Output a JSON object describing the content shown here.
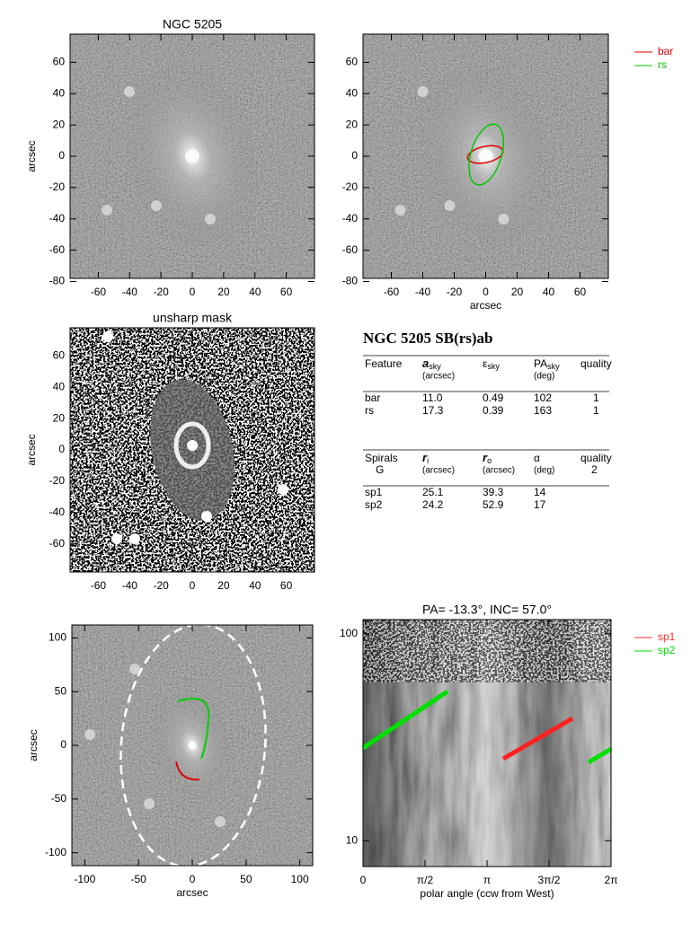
{
  "panels": [
    {
      "title": "NGC 5205",
      "ylabel": "arcsec",
      "xlim": [
        -78,
        78
      ],
      "ylim": [
        -78,
        78
      ],
      "xticks": [
        -60,
        -40,
        -20,
        0,
        20,
        40,
        60
      ],
      "yticks": [
        -80,
        -60,
        -40,
        -20,
        0,
        20,
        40,
        60
      ]
    },
    {
      "xlabel": "arcsec",
      "xlim": [
        -78,
        78
      ],
      "ylim": [
        -78,
        78
      ],
      "xticks": [
        -60,
        -40,
        -20,
        0,
        20,
        40,
        60
      ],
      "yticks": [
        -80,
        -60,
        -40,
        -20,
        0,
        20,
        40,
        60
      ],
      "legend": [
        {
          "name": "bar",
          "color": "#e00000"
        },
        {
          "name": "rs",
          "color": "#00c800"
        }
      ]
    },
    {
      "title": "unsharp mask",
      "ylabel": "arcsec",
      "xlim": [
        -78,
        78
      ],
      "ylim": [
        -78,
        78
      ],
      "xticks": [
        -60,
        -40,
        -20,
        0,
        20,
        40,
        60
      ],
      "yticks": [
        -60,
        -40,
        -20,
        0,
        20,
        40,
        60
      ]
    },
    {
      "xlabel": "arcsec",
      "ylabel": "arcsec",
      "xlim": [
        -112,
        112
      ],
      "ylim": [
        -112,
        112
      ],
      "xticks": [
        -100,
        -50,
        0,
        50,
        100
      ],
      "yticks": [
        -100,
        -50,
        0,
        50,
        100
      ]
    },
    {
      "title": "PA= -13.3°, INC=  57.0°",
      "xlabel": "polar angle (ccw from West)",
      "xlim": [
        0,
        6.2832
      ],
      "ylim": [
        7.5,
        117
      ],
      "ylog": true,
      "xticks": [
        {
          "value": 0,
          "label": "0"
        },
        {
          "value": 1.5708,
          "label": "π/2"
        },
        {
          "value": 3.1416,
          "label": "π"
        },
        {
          "value": 4.7124,
          "label": "3π/2"
        },
        {
          "value": 6.2832,
          "label": "2π"
        }
      ],
      "yticks": [
        10,
        100
      ],
      "legend": [
        {
          "name": "sp1",
          "color": "#ff3030"
        },
        {
          "name": "sp2",
          "color": "#00e000"
        }
      ]
    }
  ],
  "table": {
    "title": "NGC 5205  SB(rs)ab",
    "features": {
      "columns": [
        {
          "name": "Feature"
        },
        {
          "name": "a",
          "sub": "sky",
          "unit": "(arcsec)"
        },
        {
          "name": "ε",
          "sub": "sky"
        },
        {
          "name": "PA",
          "sub": "sky",
          "unit": "(deg)"
        },
        {
          "name": "quality"
        }
      ],
      "rows": [
        [
          "bar",
          "11.0",
          "0.49",
          "102",
          "1"
        ],
        [
          "rs",
          "17.3",
          "0.39",
          "163",
          "1"
        ]
      ]
    },
    "spirals": {
      "columns": [
        {
          "name": "Spirals",
          "unit": "G"
        },
        {
          "name": "r",
          "sub": "i",
          "unit": "(arcsec)"
        },
        {
          "name": "r",
          "sub": "o",
          "unit": "(arcsec)"
        },
        {
          "name": "α",
          "unit": "(deg)"
        },
        {
          "name": "quality",
          "unit": "2"
        }
      ],
      "rows": [
        [
          "sp1",
          "25.1",
          "39.3",
          "14"
        ],
        [
          "sp2",
          "24.2",
          "52.9",
          "17"
        ]
      ]
    }
  }
}
